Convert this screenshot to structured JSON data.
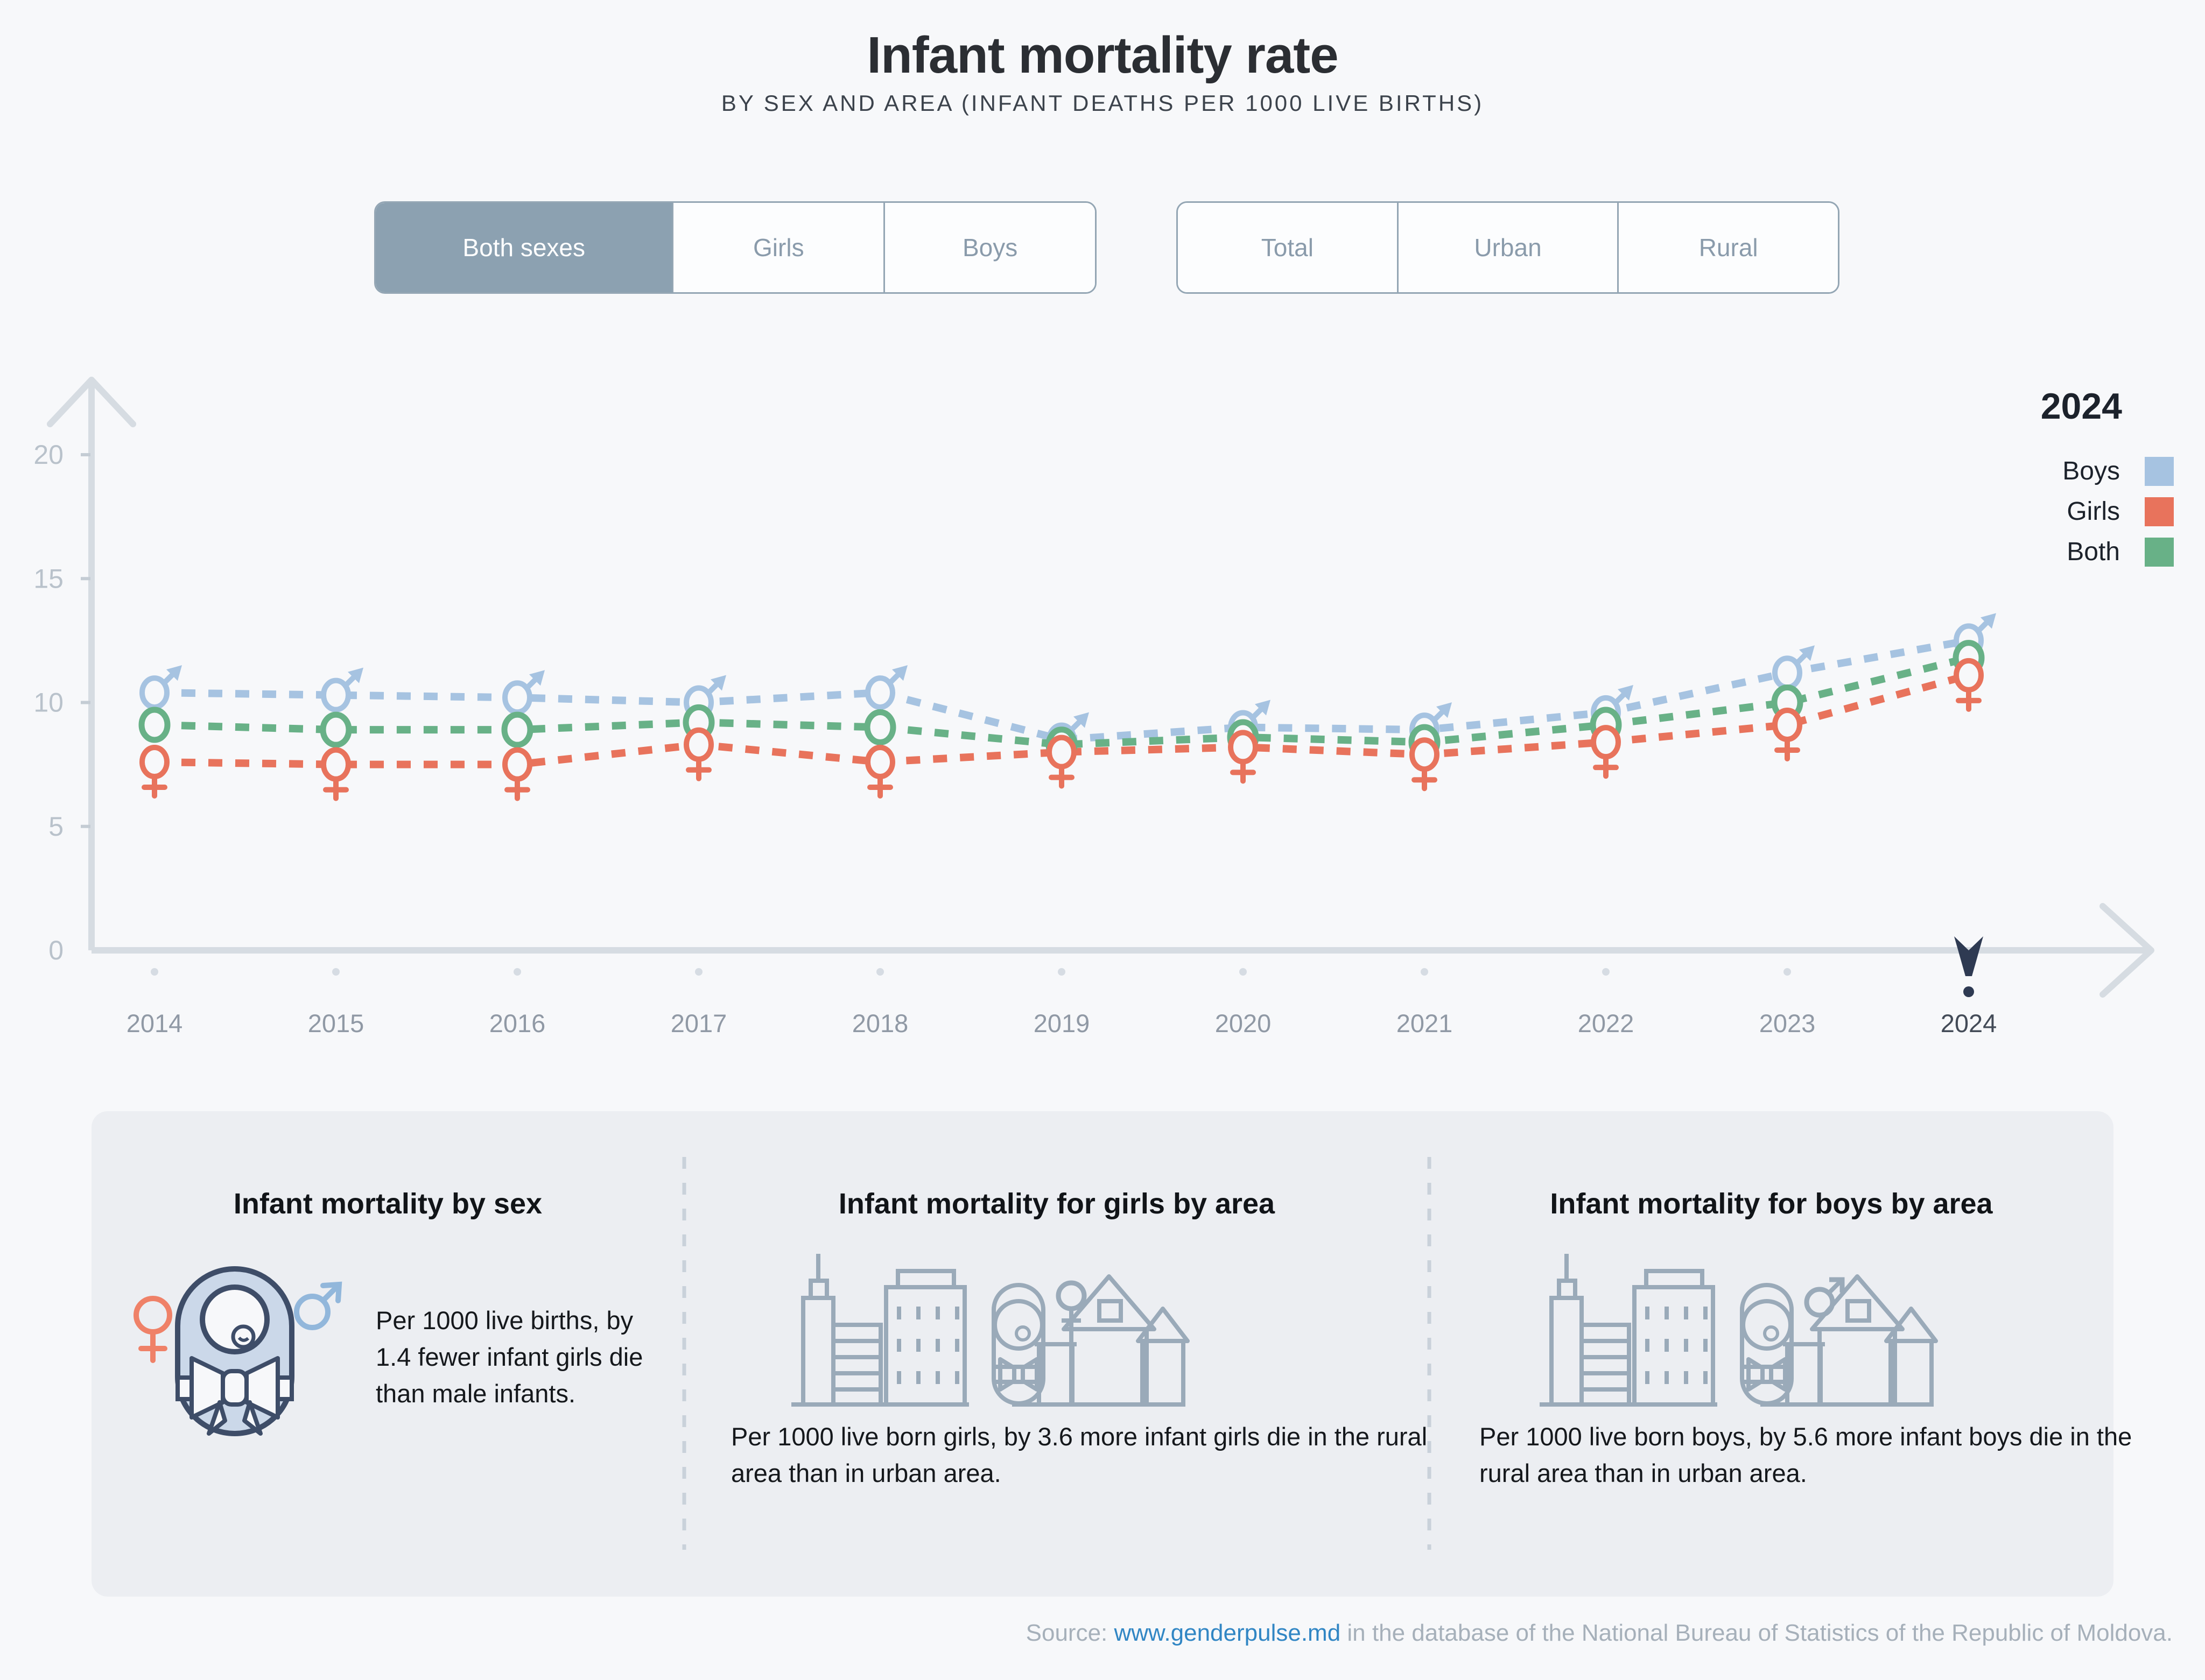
{
  "header": {
    "title": "Infant mortality rate",
    "subtitle": "BY SEX AND AREA (INFANT DEATHS PER 1000 LIVE BIRTHS)"
  },
  "controls": {
    "sex": {
      "options": [
        "Both sexes",
        "Girls",
        "Boys"
      ],
      "selected": "Both sexes"
    },
    "area": {
      "options": [
        "Total",
        "Urban",
        "Rural"
      ],
      "selected": ""
    }
  },
  "legend": {
    "year": "2024",
    "entries": [
      {
        "label": "Boys",
        "color": "#a6c3e1"
      },
      {
        "label": "Girls",
        "color": "#e8735c"
      },
      {
        "label": "Both",
        "color": "#68b187"
      }
    ]
  },
  "chart_data": {
    "type": "line",
    "x": [
      2014,
      2015,
      2016,
      2017,
      2018,
      2019,
      2020,
      2021,
      2022,
      2023,
      2024
    ],
    "series": [
      {
        "name": "Boys",
        "marker": "male",
        "color": "#a6c3e1",
        "values": [
          10.4,
          10.3,
          10.2,
          10.0,
          10.4,
          8.5,
          9.0,
          8.9,
          9.6,
          11.2,
          12.5
        ]
      },
      {
        "name": "Both",
        "marker": "circle",
        "color": "#68b187",
        "values": [
          9.1,
          8.9,
          8.9,
          9.2,
          9.0,
          8.3,
          8.6,
          8.4,
          9.1,
          10.0,
          11.8
        ]
      },
      {
        "name": "Girls",
        "marker": "female",
        "color": "#e8735c",
        "values": [
          7.6,
          7.5,
          7.5,
          8.3,
          7.6,
          8.0,
          8.2,
          7.9,
          8.4,
          9.1,
          11.1
        ]
      }
    ],
    "title": "Infant mortality rate",
    "xlabel": "",
    "ylabel": "",
    "ylim": [
      0,
      20
    ],
    "yticks": [
      0,
      5,
      10,
      15,
      20
    ],
    "grid": false,
    "legend_position": "top-right",
    "highlighted_year": "2024"
  },
  "cards": [
    {
      "title": "Infant mortality by sex",
      "text": "Per 1000 live births, by 1.4 fewer infant girls die than male infants."
    },
    {
      "title": "Infant mortality for girls by area",
      "text": "Per 1000 live born girls, by 3.6 more infant girls die in the rural area than in urban area."
    },
    {
      "title": "Infant mortality for boys by area",
      "text": "Per 1000 live born boys, by 5.6 more infant boys die in the rural area than in urban area."
    }
  ],
  "source": {
    "prefix": "Source: ",
    "link_text": "www.genderpulse.md",
    "suffix": " in the database of the National Bureau of Statistics of the Republic of Moldova."
  },
  "colors": {
    "boys": "#a6c3e1",
    "girls": "#e8735c",
    "both": "#68b187",
    "axis": "#d6dce2",
    "navy": "#2e3a52",
    "panel": "#eceef2",
    "selected_button": "#8ca1b1",
    "link": "#3186c4"
  }
}
